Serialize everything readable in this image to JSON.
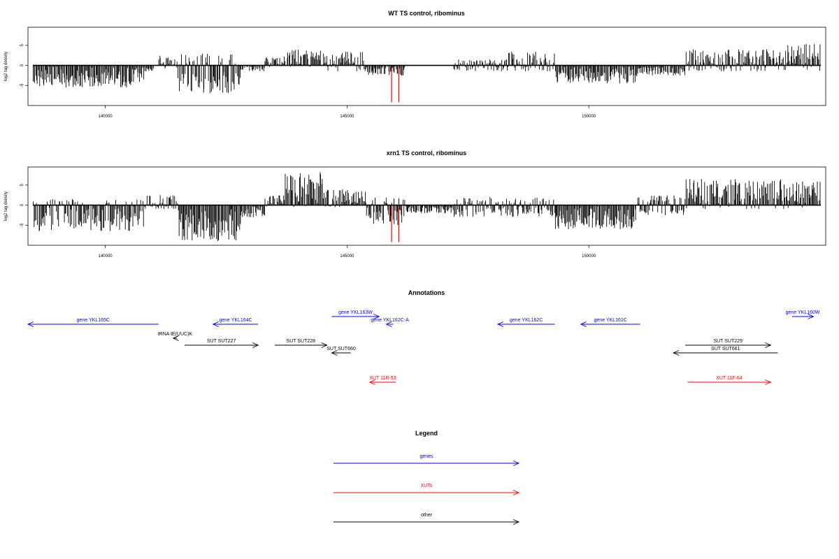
{
  "colors": {
    "genes": "#0000ff",
    "xuts": "#ff0000",
    "other": "#000000",
    "highlight": "#ff0000"
  },
  "chart_data": [
    {
      "type": "bar",
      "title": "WT TS control, ribominus",
      "ylabel": "log2 tag density",
      "xlim": [
        138400,
        154900
      ],
      "ylim": [
        -10,
        9.5
      ],
      "x_ticks": [
        "140000",
        "145000",
        "150000"
      ],
      "y_ticks": [
        "5",
        "0",
        "-5"
      ],
      "x_tick_values": [
        140000,
        145000,
        150000
      ],
      "y_tick_values": [
        5,
        0,
        -5
      ],
      "highlight_bars": [
        {
          "x": 145920,
          "value": -9.2
        },
        {
          "x": 146070,
          "value": -9.2
        }
      ],
      "signal_segments": [
        {
          "start": 138500,
          "end": 140800,
          "min": -5.5,
          "max": 0.3
        },
        {
          "start": 140800,
          "end": 141000,
          "min": -1.5,
          "max": 0.5
        },
        {
          "start": 141100,
          "end": 141500,
          "min": -0.8,
          "max": 2.5
        },
        {
          "start": 141500,
          "end": 142800,
          "min": -7.0,
          "max": 3.0
        },
        {
          "start": 142800,
          "end": 143300,
          "min": -1.5,
          "max": 0.5
        },
        {
          "start": 143300,
          "end": 143700,
          "min": -0.5,
          "max": 2.0
        },
        {
          "start": 143700,
          "end": 144500,
          "min": -0.5,
          "max": 4.0
        },
        {
          "start": 144500,
          "end": 145400,
          "min": -1.5,
          "max": 3.5
        },
        {
          "start": 145400,
          "end": 146200,
          "min": -2.5,
          "max": 1.0
        },
        {
          "start": 147200,
          "end": 148200,
          "min": -1.5,
          "max": 1.5
        },
        {
          "start": 148200,
          "end": 149300,
          "min": -1.5,
          "max": 3.5
        },
        {
          "start": 149300,
          "end": 151000,
          "min": -4.5,
          "max": 0.5
        },
        {
          "start": 151000,
          "end": 152000,
          "min": -2.5,
          "max": 1.0
        },
        {
          "start": 152000,
          "end": 154000,
          "min": -1.5,
          "max": 4.0
        },
        {
          "start": 154000,
          "end": 154800,
          "min": -1.5,
          "max": 5.5
        }
      ]
    },
    {
      "type": "bar",
      "title": "xrn1 TS control, ribominus",
      "ylabel": "log2 tag density",
      "xlim": [
        138400,
        154900
      ],
      "ylim": [
        -10,
        9.5
      ],
      "x_ticks": [
        "140000",
        "145000",
        "150000"
      ],
      "y_ticks": [
        "5",
        "0",
        "-5"
      ],
      "x_tick_values": [
        140000,
        145000,
        150000
      ],
      "y_tick_values": [
        5,
        0,
        -5
      ],
      "highlight_bars": [
        {
          "x": 145920,
          "value": -9.2
        },
        {
          "x": 146070,
          "value": -9.2
        }
      ],
      "signal_segments": [
        {
          "start": 138500,
          "end": 140800,
          "min": -6.5,
          "max": 1.5
        },
        {
          "start": 140800,
          "end": 141500,
          "min": -1.0,
          "max": 2.5
        },
        {
          "start": 141500,
          "end": 142800,
          "min": -9.0,
          "max": 0.5
        },
        {
          "start": 142800,
          "end": 143300,
          "min": -3.0,
          "max": 0.5
        },
        {
          "start": 143300,
          "end": 143700,
          "min": -0.5,
          "max": 2.5
        },
        {
          "start": 143700,
          "end": 144500,
          "min": -0.5,
          "max": 8.5
        },
        {
          "start": 144500,
          "end": 145400,
          "min": -0.5,
          "max": 4.0
        },
        {
          "start": 145400,
          "end": 146200,
          "min": -5.0,
          "max": 2.0
        },
        {
          "start": 146200,
          "end": 147200,
          "min": -2.0,
          "max": 1.0
        },
        {
          "start": 147200,
          "end": 149300,
          "min": -3.0,
          "max": 2.0
        },
        {
          "start": 149300,
          "end": 151000,
          "min": -6.0,
          "max": 0.5
        },
        {
          "start": 151000,
          "end": 152000,
          "min": -2.5,
          "max": 2.5
        },
        {
          "start": 152000,
          "end": 154000,
          "min": -1.0,
          "max": 6.5
        },
        {
          "start": 154000,
          "end": 154800,
          "min": -1.0,
          "max": 6.0
        }
      ]
    }
  ],
  "annotations": {
    "title": "Annotations",
    "items": [
      {
        "label": "gene YKL165C",
        "category": "genes",
        "start": 138400,
        "end": 141150,
        "strand": "-",
        "row": 1
      },
      {
        "label": "gene YKL164C",
        "category": "genes",
        "start": 142300,
        "end": 143250,
        "strand": "-",
        "row": 1
      },
      {
        "label": "gene YKL163W",
        "category": "genes",
        "start": 144800,
        "end": 145800,
        "strand": "+",
        "row": 0
      },
      {
        "label": "gene YKL162C-A",
        "category": "genes",
        "start": 145950,
        "end": 146100,
        "strand": "-",
        "row": 1
      },
      {
        "label": "gene YKL162C",
        "category": "genes",
        "start": 148300,
        "end": 149500,
        "strand": "-",
        "row": 1
      },
      {
        "label": "gene YKL161C",
        "category": "genes",
        "start": 150050,
        "end": 151300,
        "strand": "-",
        "row": 1
      },
      {
        "label": "gene YKL160W",
        "category": "genes",
        "start": 154500,
        "end": 154950,
        "strand": "+",
        "row": 0
      },
      {
        "label": "tRNA tE(UUC)K",
        "category": "other",
        "start": 141460,
        "end": 141540,
        "strand": "-",
        "row": 2
      },
      {
        "label": "SUT SUT227",
        "category": "other",
        "start": 141700,
        "end": 143250,
        "strand": "+",
        "row": 3
      },
      {
        "label": "SUT SUT228",
        "category": "other",
        "start": 143600,
        "end": 144700,
        "strand": "+",
        "row": 3
      },
      {
        "label": "SUT SUT660",
        "category": "other",
        "start": 144800,
        "end": 145200,
        "strand": "-",
        "row": 4
      },
      {
        "label": "SUT SUT229",
        "category": "other",
        "start": 152250,
        "end": 154050,
        "strand": "+",
        "row": 3
      },
      {
        "label": "SUT SUT661",
        "category": "other",
        "start": 152000,
        "end": 154200,
        "strand": "-",
        "row": 4
      },
      {
        "label": "XUT 11R-53",
        "category": "xuts",
        "start": 145600,
        "end": 146150,
        "strand": "-",
        "row": 5
      },
      {
        "label": "XUT 11F-64",
        "category": "xuts",
        "start": 152300,
        "end": 154050,
        "strand": "+",
        "row": 5
      }
    ]
  },
  "legend": {
    "title": "Legend",
    "items": [
      {
        "label": "genes",
        "category": "genes"
      },
      {
        "label": "XUTs",
        "category": "xuts"
      },
      {
        "label": "other",
        "category": "other"
      }
    ]
  }
}
